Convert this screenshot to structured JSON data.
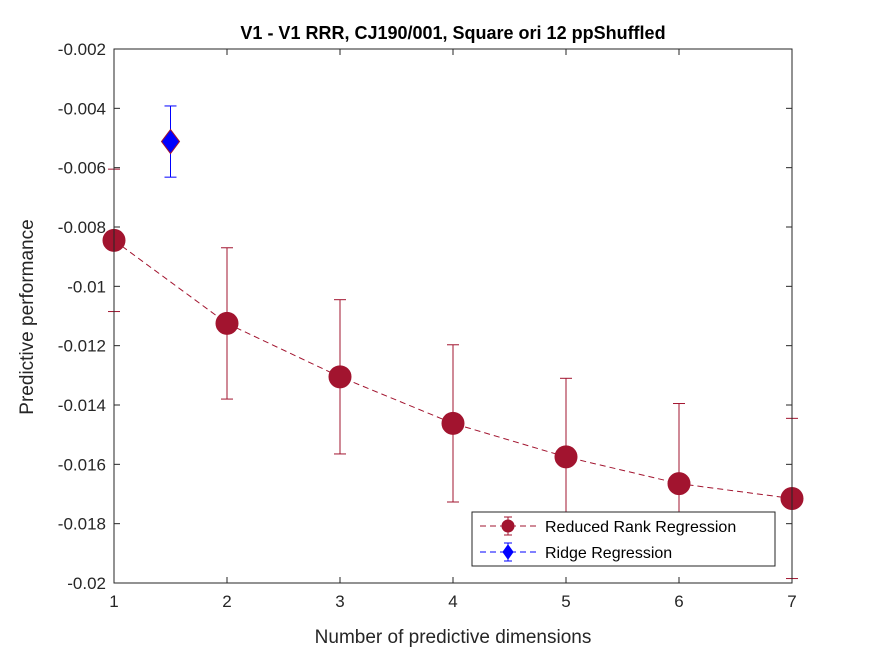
{
  "chart_data": {
    "type": "line",
    "title": "V1 - V1 RRR, CJ190/001, Square ori 12 ppShuffled",
    "xlabel": "Number of predictive dimensions",
    "ylabel": "Predictive performance",
    "xlim": [
      1,
      7
    ],
    "ylim": [
      -0.02,
      -0.002
    ],
    "x_ticks": [
      1,
      2,
      3,
      4,
      5,
      6,
      7
    ],
    "x_tick_labels": [
      "1",
      "2",
      "3",
      "4",
      "5",
      "6",
      "7"
    ],
    "y_ticks": [
      -0.02,
      -0.018,
      -0.016,
      -0.014,
      -0.012,
      -0.01,
      -0.008,
      -0.006,
      -0.004,
      -0.002
    ],
    "y_tick_labels": [
      "-0.02",
      "-0.018",
      "-0.016",
      "-0.014",
      "-0.012",
      "-0.01",
      "-0.008",
      "-0.006",
      "-0.004",
      "-0.002"
    ],
    "grid": false,
    "legend_position": "bottom-right",
    "series": [
      {
        "name": "Reduced Rank Regression",
        "color": "#a2142f",
        "marker": "circle",
        "line_style": "dashed",
        "x": [
          1,
          2,
          3,
          4,
          5,
          6,
          7
        ],
        "y": [
          -0.00845,
          -0.01125,
          -0.01305,
          -0.01462,
          -0.01575,
          -0.01665,
          -0.01715
        ],
        "error": [
          0.0024,
          0.00255,
          0.0026,
          0.00265,
          0.00265,
          0.0027,
          0.0027
        ]
      },
      {
        "name": "Ridge Regression",
        "color": "#0000ff",
        "marker": "diamond",
        "line_style": "dashed",
        "x": [
          1.5
        ],
        "y": [
          -0.00512
        ],
        "error": [
          0.0012
        ]
      }
    ]
  }
}
